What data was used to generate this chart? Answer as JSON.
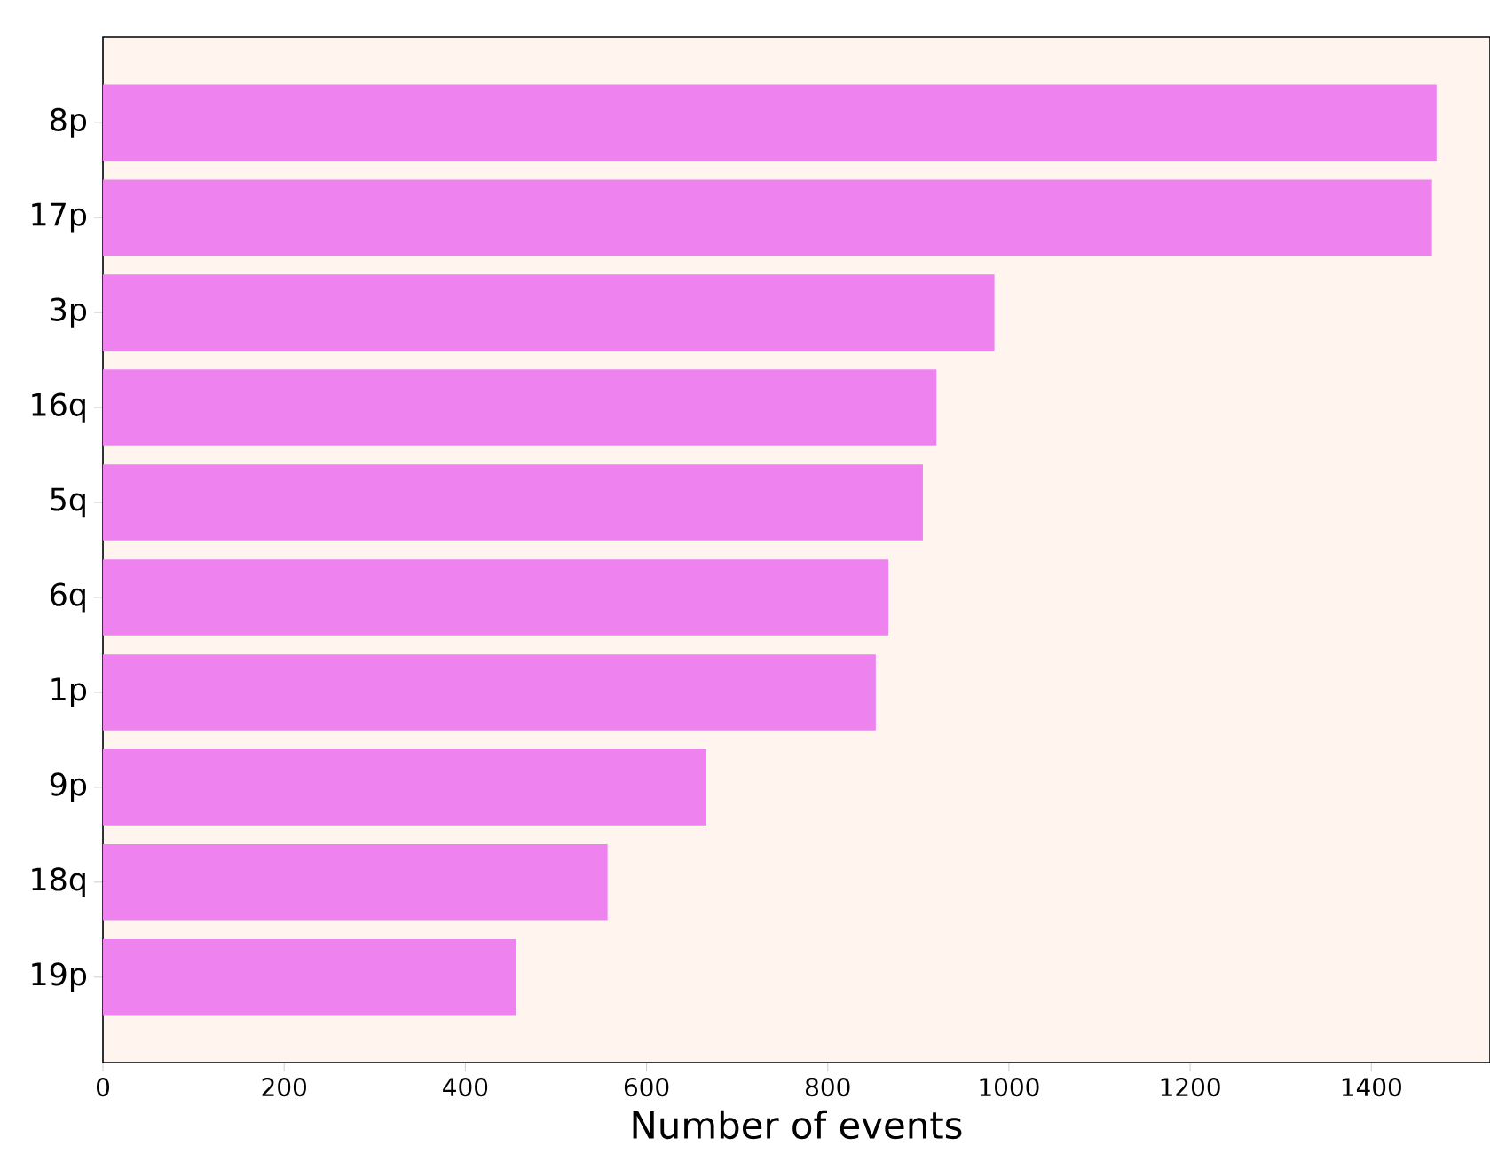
{
  "chart_data": {
    "type": "bar",
    "orientation": "horizontal",
    "xlabel": "Number of events",
    "categories": [
      "8p",
      "17p",
      "3p",
      "16q",
      "5q",
      "6q",
      "1p",
      "9p",
      "18q",
      "19p"
    ],
    "values": [
      1472,
      1467,
      984,
      920,
      905,
      867,
      853,
      666,
      557,
      456
    ],
    "color": "#ee82ee",
    "xlim": [
      0,
      1531
    ],
    "xticks": [
      0,
      200,
      400,
      600,
      800,
      1000,
      1200,
      1400
    ],
    "grid": false
  }
}
